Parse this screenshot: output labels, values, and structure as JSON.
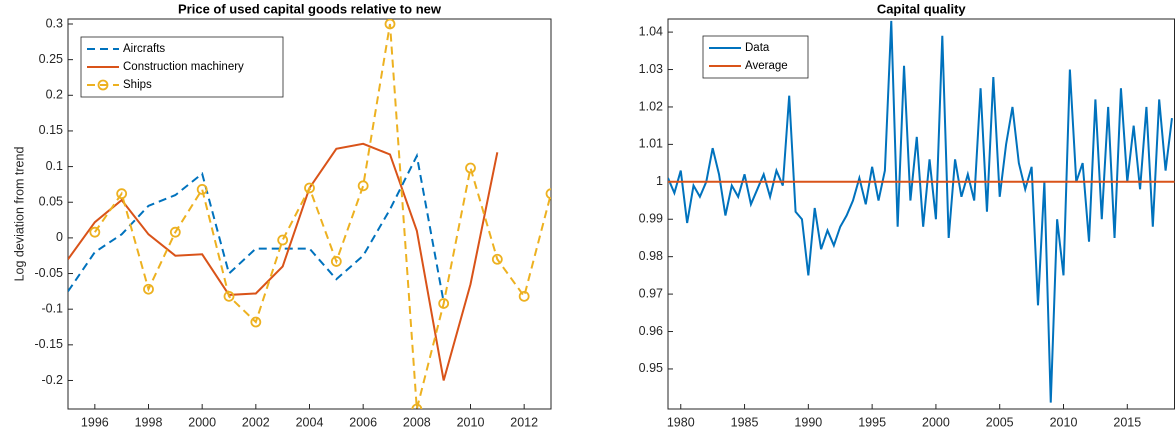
{
  "chart_data": [
    {
      "type": "line",
      "title": "Price of used capital goods relative to new",
      "y_label": "Log deviation from trend",
      "x": [
        1995,
        1996,
        1997,
        1998,
        1999,
        2000,
        2001,
        2002,
        2003,
        2004,
        2005,
        2006,
        2007,
        2008,
        2009,
        2010,
        2011,
        2012,
        2013
      ],
      "series": [
        {
          "name": "Aircrafts",
          "color": "#0072bd",
          "style": "dashed",
          "marker": "none",
          "values": [
            -0.075,
            -0.02,
            0.005,
            0.045,
            0.06,
            0.09,
            -0.05,
            -0.015,
            -0.015,
            -0.015,
            -0.058,
            -0.025,
            0.04,
            0.115,
            -0.09,
            null,
            null,
            null,
            null
          ]
        },
        {
          "name": "Construction machinery",
          "color": "#d95319",
          "style": "solid",
          "marker": "none",
          "values": [
            -0.03,
            0.022,
            0.053,
            0.005,
            -0.025,
            -0.023,
            -0.08,
            -0.078,
            -0.04,
            0.07,
            0.125,
            0.132,
            0.117,
            0.01,
            -0.2,
            -0.065,
            0.12,
            null,
            null
          ]
        },
        {
          "name": "Ships",
          "color": "#edb120",
          "style": "dashed",
          "marker": "circle",
          "values": [
            null,
            0.008,
            0.062,
            -0.072,
            0.008,
            0.068,
            -0.082,
            -0.118,
            -0.003,
            0.07,
            -0.033,
            0.073,
            0.3,
            -0.24,
            -0.092,
            0.098,
            -0.03,
            -0.082,
            0.062
          ]
        }
      ],
      "xlim": [
        1995,
        2013
      ],
      "xticks": [
        1996,
        1998,
        2000,
        2002,
        2004,
        2006,
        2008,
        2010,
        2012
      ],
      "ylim": [
        -0.24,
        0.307
      ],
      "yticks": [
        -0.2,
        -0.15,
        -0.1,
        -0.05,
        0,
        0.05,
        0.1,
        0.15,
        0.2,
        0.25,
        0.3
      ],
      "legend": "upper-left"
    },
    {
      "type": "line",
      "title": "Capital quality",
      "x": [
        1979,
        1979.5,
        1980,
        1980.5,
        1981,
        1981.5,
        1982,
        1982.5,
        1983,
        1983.5,
        1984,
        1984.5,
        1985,
        1985.5,
        1986,
        1986.5,
        1987,
        1987.5,
        1988,
        1988.5,
        1989,
        1989.5,
        1990,
        1990.5,
        1991,
        1991.5,
        1992,
        1992.5,
        1993,
        1993.5,
        1994,
        1994.5,
        1995,
        1995.5,
        1996,
        1996.5,
        1997,
        1997.5,
        1998,
        1998.5,
        1999,
        1999.5,
        2000,
        2000.5,
        2001,
        2001.5,
        2002,
        2002.5,
        2003,
        2003.5,
        2004,
        2004.5,
        2005,
        2005.5,
        2006,
        2006.5,
        2007,
        2007.5,
        2008,
        2008.5,
        2009,
        2009.5,
        2010,
        2010.5,
        2011,
        2011.5,
        2012,
        2012.5,
        2013,
        2013.5,
        2014,
        2014.5,
        2015,
        2015.5,
        2016,
        2016.5,
        2017,
        2017.5,
        2018,
        2018.5
      ],
      "series": [
        {
          "name": "Data",
          "color": "#0072bd",
          "style": "solid",
          "marker": "none",
          "values": [
            1.001,
            0.997,
            1.003,
            0.989,
            0.999,
            0.996,
            1.0,
            1.009,
            1.002,
            0.991,
            0.999,
            0.996,
            1.002,
            0.994,
            0.998,
            1.002,
            0.996,
            1.003,
            0.999,
            1.023,
            0.992,
            0.99,
            0.975,
            0.993,
            0.982,
            0.987,
            0.983,
            0.988,
            0.991,
            0.995,
            1.001,
            0.994,
            1.004,
            0.995,
            1.003,
            1.043,
            0.988,
            1.031,
            0.995,
            1.012,
            0.988,
            1.006,
            0.99,
            1.039,
            0.985,
            1.006,
            0.996,
            1.002,
            0.995,
            1.025,
            0.992,
            1.028,
            0.996,
            1.01,
            1.02,
            1.005,
            0.998,
            1.004,
            0.967,
            1.0,
            0.941,
            0.99,
            0.975,
            1.03,
            1.0,
            1.005,
            0.984,
            1.022,
            0.99,
            1.02,
            0.985,
            1.025,
            1.0,
            1.015,
            0.998,
            1.02,
            0.988,
            1.022,
            1.003,
            1.017
          ]
        },
        {
          "name": "Average",
          "color": "#d95319",
          "style": "solid",
          "marker": "none",
          "x": [
            1979,
            2018.7
          ],
          "values": [
            1,
            1
          ]
        }
      ],
      "xlim": [
        1979,
        2018.7
      ],
      "xticks": [
        1980,
        1985,
        1990,
        1995,
        2000,
        2005,
        2010,
        2015
      ],
      "ylim": [
        0.9393,
        1.0435
      ],
      "yticks": [
        0.95,
        0.96,
        0.97,
        0.98,
        0.99,
        1,
        1.01,
        1.02,
        1.03,
        1.04
      ],
      "legend": "upper-left"
    }
  ]
}
